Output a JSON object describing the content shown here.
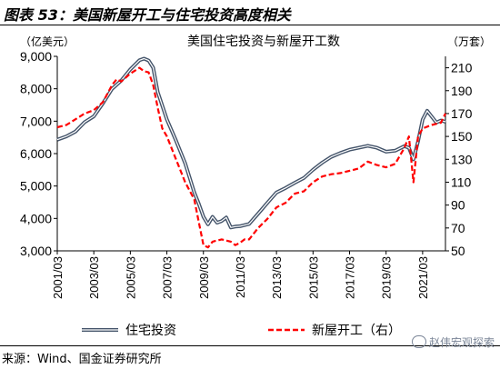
{
  "figure_label": "图表 53：美国新屋开工与住宅投资高度相关",
  "source": "来源：Wind、国金证券研究所",
  "watermark": "赵伟宏观探索",
  "chart_data": {
    "type": "line",
    "title": "美国住宅投资与新屋开工数",
    "ylabel_left": "（亿美元）",
    "ylabel_right": "（万套）",
    "y_left_range": [
      3000,
      9000
    ],
    "y_left_ticks": [
      "3,000",
      "4,000",
      "5,000",
      "6,000",
      "7,000",
      "8,000",
      "9,000"
    ],
    "y_right_range": [
      50,
      220
    ],
    "y_right_ticks": [
      "50",
      "70",
      "90",
      "110",
      "130",
      "150",
      "170",
      "190",
      "210"
    ],
    "x_range": [
      2001.0,
      2022.25
    ],
    "x_ticks": [
      "2001/03",
      "2003/03",
      "2005/03",
      "2007/03",
      "2009/03",
      "2011/03",
      "2013/03",
      "2015/03",
      "2017/03",
      "2019/03",
      "2021/03"
    ],
    "grid": false,
    "legend_position": "bottom",
    "series": [
      {
        "name": "住宅投资",
        "axis": "left",
        "color": "#44546a",
        "style": "double-line",
        "x": [
          2001.0,
          2001.5,
          2002.0,
          2002.5,
          2003.0,
          2003.5,
          2004.0,
          2004.5,
          2005.0,
          2005.5,
          2005.75,
          2006.0,
          2006.25,
          2006.5,
          2007.0,
          2007.5,
          2008.0,
          2008.5,
          2008.75,
          2009.0,
          2009.25,
          2009.5,
          2009.75,
          2010.0,
          2010.25,
          2010.5,
          2010.75,
          2011.0,
          2011.5,
          2012.0,
          2012.5,
          2013.0,
          2013.5,
          2014.0,
          2014.5,
          2015.0,
          2015.5,
          2016.0,
          2016.5,
          2017.0,
          2017.5,
          2018.0,
          2018.5,
          2019.0,
          2019.5,
          2020.0,
          2020.25,
          2020.5,
          2020.75,
          2021.0,
          2021.25,
          2021.5,
          2021.75,
          2022.0,
          2022.25
        ],
        "values": [
          6430,
          6530,
          6680,
          6970,
          7150,
          7550,
          8000,
          8250,
          8600,
          8880,
          8930,
          8870,
          8650,
          7900,
          7050,
          6400,
          5700,
          4800,
          4450,
          4050,
          3820,
          4050,
          3870,
          3920,
          4030,
          3720,
          3750,
          3760,
          3830,
          4150,
          4480,
          4800,
          4940,
          5100,
          5250,
          5500,
          5720,
          5900,
          6020,
          6120,
          6180,
          6240,
          6180,
          6060,
          6090,
          6230,
          6180,
          5820,
          6380,
          7050,
          7320,
          7140,
          6960,
          7020,
          6980
        ]
      },
      {
        "name": "新屋开工（右）",
        "axis": "right",
        "color": "#ff0000",
        "style": "dashed",
        "x": [
          2001.0,
          2001.5,
          2002.0,
          2002.5,
          2003.0,
          2003.5,
          2004.0,
          2004.25,
          2004.5,
          2005.0,
          2005.5,
          2005.75,
          2006.0,
          2006.25,
          2006.5,
          2006.75,
          2007.0,
          2007.5,
          2008.0,
          2008.5,
          2008.75,
          2009.0,
          2009.25,
          2009.5,
          2010.0,
          2010.5,
          2010.75,
          2011.0,
          2011.25,
          2011.5,
          2012.0,
          2012.5,
          2013.0,
          2013.5,
          2014.0,
          2014.5,
          2015.0,
          2015.5,
          2016.0,
          2016.5,
          2017.0,
          2017.5,
          2018.0,
          2018.5,
          2019.0,
          2019.5,
          2020.0,
          2020.25,
          2020.5,
          2020.75,
          2021.0,
          2021.5,
          2022.0,
          2022.25
        ],
        "values": [
          158,
          160,
          165,
          170,
          173,
          180,
          195,
          200,
          198,
          205,
          210,
          207,
          206,
          195,
          175,
          157,
          150,
          130,
          110,
          95,
          75,
          55,
          53,
          58,
          60,
          58,
          55,
          57,
          60,
          60,
          70,
          78,
          88,
          92,
          100,
          102,
          110,
          115,
          117,
          118,
          120,
          122,
          128,
          125,
          123,
          126,
          140,
          150,
          110,
          150,
          157,
          160,
          162,
          170
        ]
      }
    ]
  }
}
